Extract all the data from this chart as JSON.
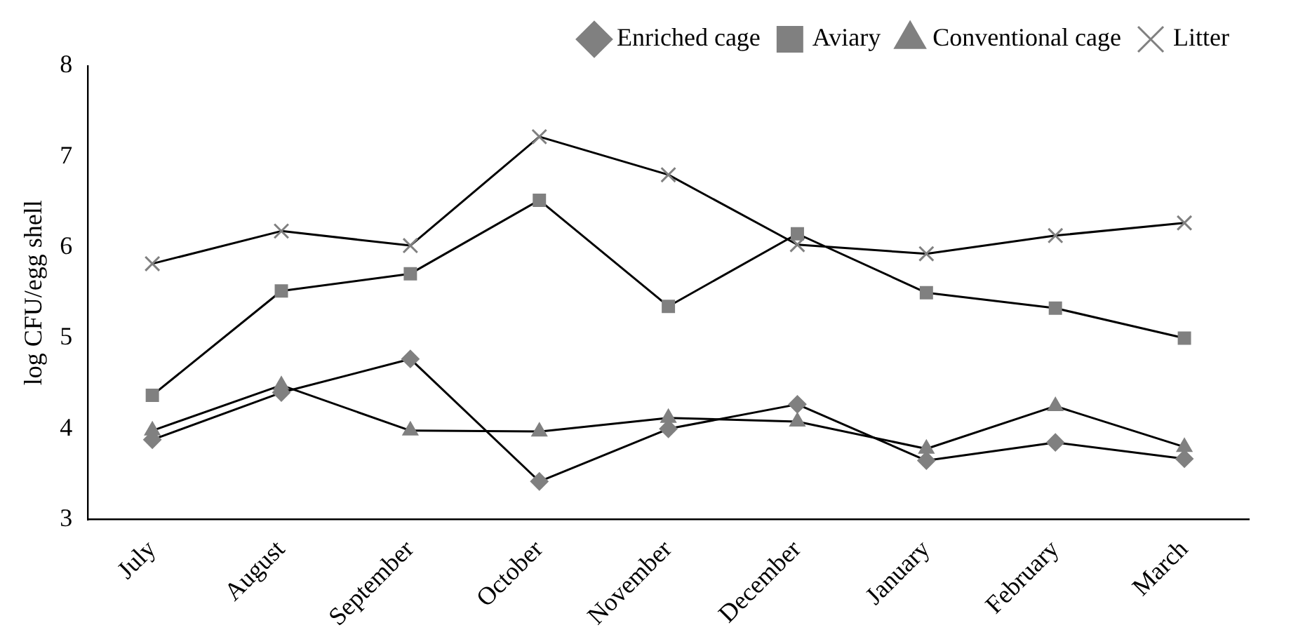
{
  "chart_data": {
    "type": "line",
    "ylabel": "log CFU/egg shell",
    "categories": [
      "July",
      "August",
      "September",
      "October",
      "November",
      "December",
      "January",
      "February",
      "March"
    ],
    "series": [
      {
        "name": "Enriched cage",
        "color": "#808080",
        "marker": "diamond",
        "values": [
          3.88,
          4.4,
          4.77,
          3.42,
          4.0,
          4.27,
          3.65,
          3.85,
          3.67
        ]
      },
      {
        "name": "Aviary",
        "color": "#808080",
        "marker": "square",
        "values": [
          4.37,
          5.52,
          5.71,
          6.52,
          5.35,
          6.15,
          5.5,
          5.33,
          5.0
        ]
      },
      {
        "name": "Conventional cage",
        "color": "#808080",
        "marker": "triangle",
        "values": [
          3.98,
          4.48,
          3.98,
          3.97,
          4.12,
          4.08,
          3.78,
          4.25,
          3.8
        ]
      },
      {
        "name": "Litter",
        "color": "#808080",
        "marker": "cross",
        "values": [
          5.82,
          6.18,
          6.02,
          7.22,
          6.8,
          6.03,
          5.93,
          6.13,
          6.27
        ]
      }
    ],
    "ylim": [
      3,
      8
    ],
    "yticks": [
      3,
      4,
      5,
      6,
      7,
      8
    ],
    "grid": false,
    "legend": "top"
  }
}
